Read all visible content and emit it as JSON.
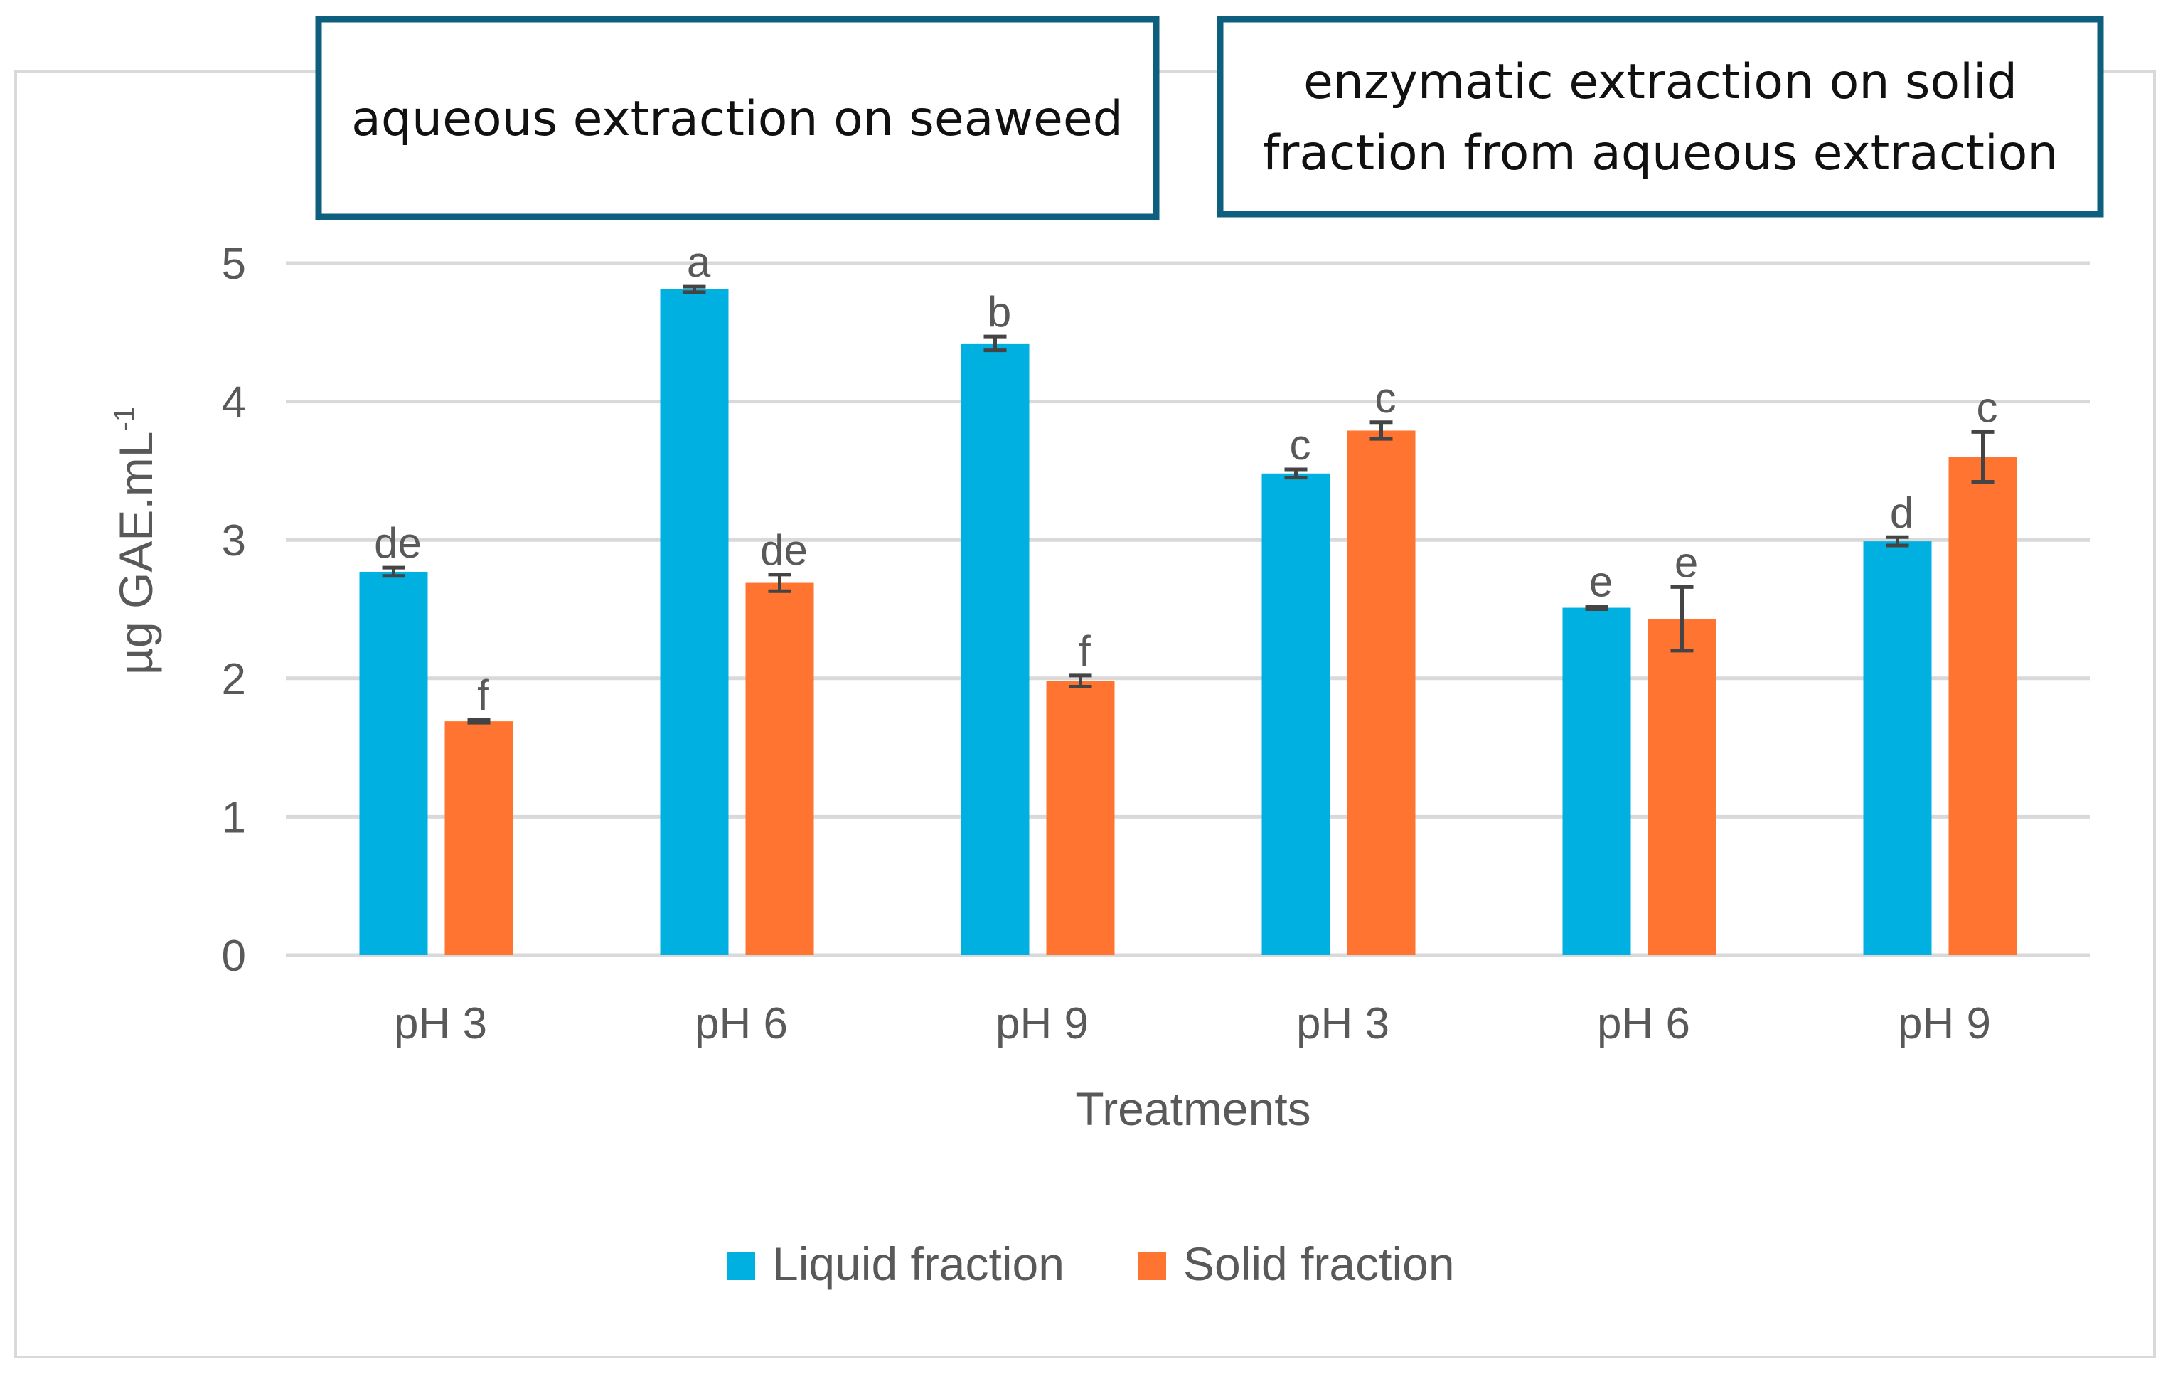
{
  "chart_data": {
    "type": "bar",
    "title": "",
    "xlabel": "Treatments",
    "ylabel": "µg GAE.mL",
    "ylabel_superscript": "-1",
    "ylim": [
      0,
      5
    ],
    "yticks": [
      0,
      1,
      2,
      3,
      4,
      5
    ],
    "grid": true,
    "legend_position": "bottom",
    "categories": [
      "pH 3",
      "pH 6",
      "pH 9",
      "pH 3",
      "pH 6",
      "pH 9"
    ],
    "category_groups": [
      {
        "label": "aqueous extraction on seaweed",
        "categories": [
          0,
          1,
          2
        ]
      },
      {
        "label": "enzymatic extraction on solid fraction from aqueous extraction",
        "label_lines": [
          "enzymatic extraction on solid",
          "fraction from aqueous extraction"
        ],
        "categories": [
          3,
          4,
          5
        ]
      }
    ],
    "series": [
      {
        "name": "Liquid fraction",
        "color": "#00B0E0",
        "values": [
          2.77,
          4.81,
          4.42,
          3.48,
          2.51,
          2.99
        ],
        "errors": [
          0.03,
          0.02,
          0.05,
          0.03,
          0.01,
          0.03
        ],
        "significance_labels": [
          "de",
          "a",
          "b",
          "c",
          "e",
          "d"
        ]
      },
      {
        "name": "Solid fraction",
        "color": "#FF7430",
        "values": [
          1.69,
          2.69,
          1.98,
          3.79,
          2.43,
          3.6
        ],
        "errors": [
          0.01,
          0.06,
          0.04,
          0.06,
          0.23,
          0.18
        ],
        "significance_labels": [
          "f",
          "de",
          "f",
          "c",
          "e",
          "c"
        ]
      }
    ]
  },
  "colors": {
    "grid": "#D9D9D9",
    "axis_text": "#595959",
    "error_bar": "#444444",
    "group_box_border": "#0E5E7E",
    "frame_border": "#D9D9D9"
  }
}
